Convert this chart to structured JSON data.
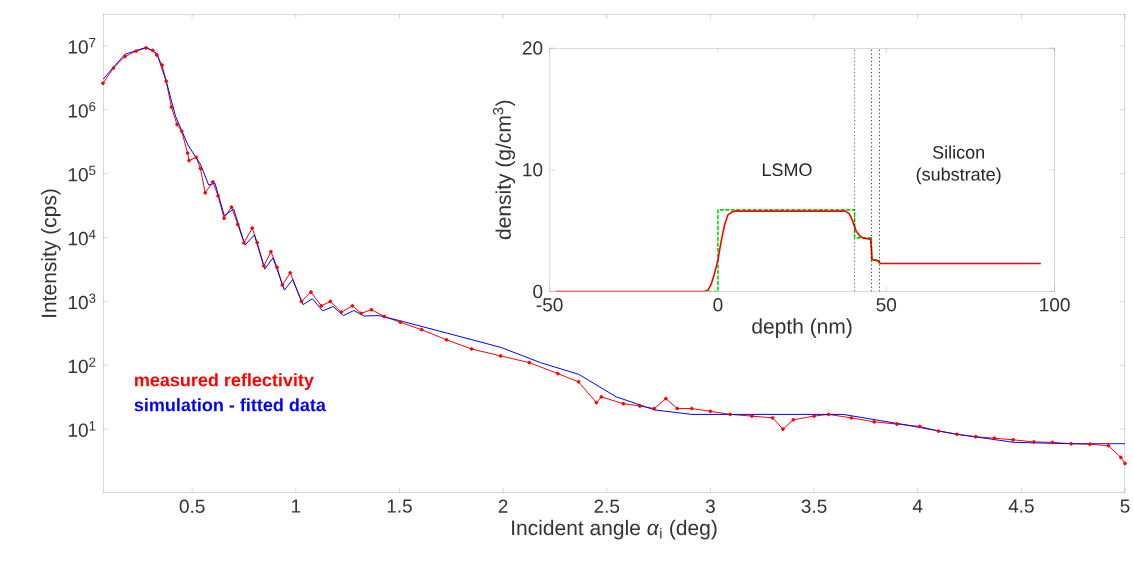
{
  "chart_data": [
    {
      "type": "line",
      "xlabel": "Incident angle *α*$_{i}$ (deg)",
      "ylabel": "Intensity (cps)",
      "xlim": [
        0.07,
        5
      ],
      "ylim": [
        1,
        31600000
      ],
      "log": "y",
      "xticks": [
        0.5,
        1,
        1.5,
        2,
        2.5,
        3,
        3.5,
        4,
        4.5,
        5
      ],
      "yticks": [
        {
          "value": 10,
          "label": "10$^{1}$"
        },
        {
          "value": 100,
          "label": "10$^{2}$"
        },
        {
          "value": 1000,
          "label": "10$^{3}$"
        },
        {
          "value": 10000,
          "label": "10$^{4}$"
        },
        {
          "value": 100000,
          "label": "10$^{5}$"
        },
        {
          "value": 1000000,
          "label": "10$^{6}$"
        },
        {
          "value": 10000000,
          "label": "10$^{7}$"
        }
      ],
      "legend": "bottom left",
      "series": [
        {
          "name": "measured reflectivity",
          "color": "#ff0000",
          "marker": "circle",
          "x": [
            0.07,
            0.12,
            0.176,
            0.23,
            0.278,
            0.31,
            0.33,
            0.355,
            0.375,
            0.4,
            0.427,
            0.45,
            0.478,
            0.485,
            0.52,
            0.54,
            0.563,
            0.6,
            0.625,
            0.654,
            0.69,
            0.72,
            0.75,
            0.79,
            0.814,
            0.846,
            0.88,
            0.91,
            0.935,
            0.973,
            1.027,
            1.073,
            1.123,
            1.167,
            1.22,
            1.273,
            1.315,
            1.365,
            1.427,
            1.505,
            1.607,
            1.727,
            1.848,
            1.988,
            2.126,
            2.264,
            2.364,
            2.45,
            2.474,
            2.58,
            2.66,
            2.73,
            2.785,
            2.84,
            2.91,
            3.0,
            3.095,
            3.2,
            3.3,
            3.35,
            3.4,
            3.5,
            3.57,
            3.68,
            3.79,
            3.9,
            4.01,
            4.1,
            4.19,
            4.28,
            4.37,
            4.46,
            4.56,
            4.65,
            4.74,
            4.83,
            4.92,
            4.98,
            5.0
          ],
          "values": [
            2600000,
            4500000,
            6800000,
            8300000,
            9300000,
            8500000,
            7200000,
            5000000,
            2800000,
            1100000,
            590000,
            460000,
            210000,
            160000,
            180000,
            120000,
            50000,
            74000,
            45000,
            20000,
            30000,
            16000,
            8300,
            14000,
            8300,
            3600,
            6000,
            3400,
            1800,
            2800,
            1000,
            1400,
            850,
            1000,
            680,
            850,
            650,
            740,
            580,
            470,
            360,
            250,
            180,
            140,
            110,
            74,
            55,
            26,
            32,
            25,
            23,
            21,
            30,
            21,
            21,
            19,
            17,
            16,
            15,
            10,
            14,
            16,
            17,
            15,
            13,
            12,
            11,
            9.3,
            8.3,
            7.6,
            7.2,
            6.8,
            6.3,
            6.2,
            5.9,
            5.8,
            5.5,
            3.6,
            2.9
          ]
        },
        {
          "name": "simulation - fitted data",
          "color": "#0000ff",
          "marker": "none",
          "x": [
            0.07,
            0.176,
            0.278,
            0.33,
            0.375,
            0.42,
            0.48,
            0.54,
            0.58,
            0.61,
            0.655,
            0.7,
            0.755,
            0.8,
            0.85,
            0.89,
            0.945,
            0.985,
            1.035,
            1.08,
            1.13,
            1.18,
            1.23,
            1.28,
            1.33,
            1.4,
            1.5,
            1.727,
            1.99,
            2.18,
            2.365,
            2.546,
            2.73,
            2.91,
            3.28,
            3.64,
            3.92,
            4.19,
            4.465,
            4.74,
            5.0
          ],
          "values": [
            3000000,
            7400000,
            9500000,
            7600000,
            2800000,
            790000,
            280000,
            140000,
            66000,
            71000,
            22000,
            28000,
            7600,
            11000,
            3200,
            4800,
            1500,
            2200,
            890,
            1100,
            710,
            830,
            600,
            720,
            590,
            600,
            500,
            320,
            190,
            110,
            72,
            32,
            20,
            17,
            17,
            17,
            12,
            8.3,
            6.2,
            5.9,
            5.9
          ]
        }
      ]
    },
    {
      "type": "line",
      "xlabel": "depth (nm)",
      "ylabel": "density (g/cm$^{3}$)",
      "xlim": [
        -50,
        100
      ],
      "ylim": [
        0,
        20
      ],
      "xticks": [
        -50,
        0,
        50,
        100
      ],
      "yticks": [
        0,
        10,
        20
      ],
      "series": [
        {
          "color": "#00dd00",
          "marker": "none",
          "line_style": "dashed",
          "x": [
            -3,
            0,
            0,
            40.6,
            40.6,
            45.6,
            45.6,
            47.8,
            47.8
          ],
          "values": [
            0,
            0,
            6.7,
            6.7,
            4.4,
            4.4,
            2.6,
            2.6,
            2.3
          ]
        },
        {
          "color": "#ff0000",
          "marker": "none",
          "line_style": "solid",
          "x": [
            -48.2,
            -4,
            -3,
            -2,
            -1,
            0,
            1,
            2,
            3,
            4,
            5,
            37.8,
            39,
            40,
            41,
            42,
            43,
            45.3,
            45.6,
            45.8,
            47.6,
            48.3,
            95.9
          ],
          "values": [
            0,
            0,
            0.1,
            0.6,
            1.5,
            2.6,
            4.2,
            5.5,
            6.3,
            6.5,
            6.6,
            6.6,
            6.4,
            5.8,
            5.0,
            4.6,
            4.4,
            4.3,
            3.5,
            2.6,
            2.5,
            2.3,
            2.3
          ]
        }
      ],
      "ref_lines": [
        {
          "axis": "x",
          "value": 40.6,
          "color": "#000000",
          "line_style": "dotted"
        },
        {
          "axis": "x",
          "value": 45.6,
          "color": "#000000",
          "line_style": "dotted"
        },
        {
          "axis": "x",
          "value": 48.0,
          "color": "#000000",
          "line_style": "dotted"
        }
      ],
      "annotations": [
        "LSMO",
        "Silicon (substrate)"
      ]
    }
  ]
}
